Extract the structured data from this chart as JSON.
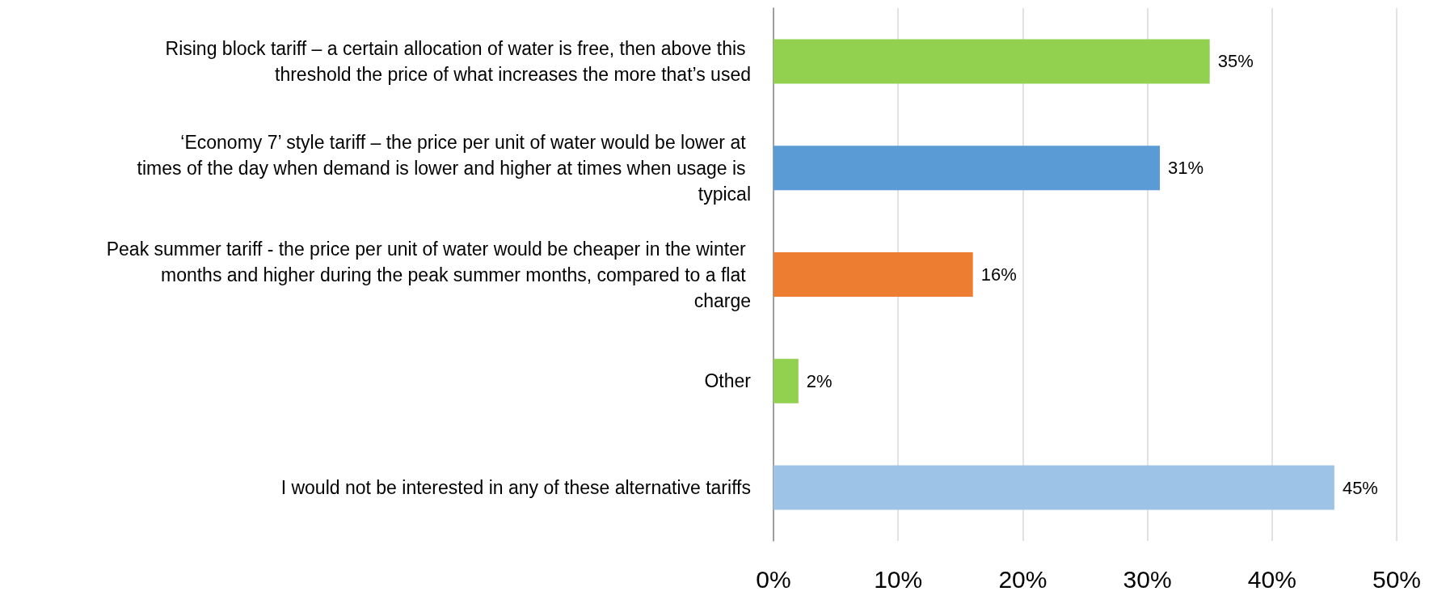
{
  "chart_data": {
    "type": "bar",
    "orientation": "horizontal",
    "categories": [
      "Rising block tariff – a certain allocation of water is free, then above this threshold the price of what increases the more that’s used",
      "‘Economy 7’ style tariff – the price per unit of water would be lower at times of the day when demand is lower and higher at times when usage is typical",
      "Peak summer tariff - the price per unit of water would be cheaper in the winter months and higher during the peak summer months, compared to a flat charge",
      "Other",
      "I would not be interested in any of these alternative tariffs"
    ],
    "values": [
      35,
      31,
      16,
      2,
      45
    ],
    "colors": [
      "#92d050",
      "#5b9bd5",
      "#ed7d31",
      "#92d050",
      "#9dc3e6"
    ],
    "value_labels": [
      "35%",
      "31%",
      "16%",
      "2%",
      "45%"
    ],
    "xlim": [
      0,
      50
    ],
    "xticks": [
      {
        "value": 0,
        "label": "0%"
      },
      {
        "value": 10,
        "label": "10%"
      },
      {
        "value": 20,
        "label": "20%"
      },
      {
        "value": 30,
        "label": "30%"
      },
      {
        "value": 40,
        "label": "40%"
      },
      {
        "value": 50,
        "label": "50%"
      }
    ],
    "grid": "x"
  }
}
